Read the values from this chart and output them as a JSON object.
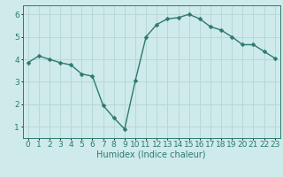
{
  "x": [
    0,
    1,
    2,
    3,
    4,
    5,
    6,
    7,
    8,
    9,
    10,
    11,
    12,
    13,
    14,
    15,
    16,
    17,
    18,
    19,
    20,
    21,
    22,
    23
  ],
  "y": [
    3.85,
    4.15,
    4.0,
    3.85,
    3.75,
    3.35,
    3.25,
    1.95,
    1.4,
    0.9,
    3.05,
    5.0,
    5.55,
    5.8,
    5.85,
    6.0,
    5.8,
    5.45,
    5.3,
    5.0,
    4.65,
    4.65,
    4.35,
    4.05
  ],
  "line_color": "#2d7a6e",
  "marker": "D",
  "marker_size": 2.5,
  "bg_color": "#ceeaea",
  "grid_color": "#b8d8d4",
  "xlabel": "Humidex (Indice chaleur)",
  "ylim": [
    0.5,
    6.4
  ],
  "xlim": [
    -0.5,
    23.5
  ],
  "yticks": [
    1,
    2,
    3,
    4,
    5,
    6
  ],
  "xticks": [
    0,
    1,
    2,
    3,
    4,
    5,
    6,
    7,
    8,
    9,
    10,
    11,
    12,
    13,
    14,
    15,
    16,
    17,
    18,
    19,
    20,
    21,
    22,
    23
  ],
  "xlabel_fontsize": 7,
  "tick_fontsize": 6.5,
  "line_width": 1.0
}
